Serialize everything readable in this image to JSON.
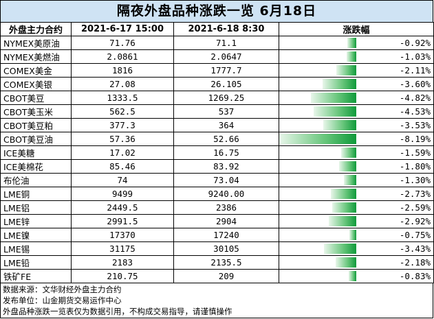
{
  "title": "隔夜外盘品种涨跌一览  6月18日",
  "headers": {
    "name": "外盘主力合约",
    "prev": "2021-6-17 15:00",
    "curr": "2021-6-18 8:30",
    "change": "涨跌幅"
  },
  "colors": {
    "bar_dark": "#0f9a3a",
    "bar_light": "#e8f6ea",
    "title_bg": "#cfe3f4"
  },
  "rows": [
    {
      "name": "NYMEX美原油",
      "prev": "71.76",
      "curr": "71.1",
      "pct_text": "-0.92%",
      "pct": -0.92
    },
    {
      "name": "NYMEX美燃油",
      "prev": "2.0861",
      "curr": "2.0647",
      "pct_text": "-1.03%",
      "pct": -1.03
    },
    {
      "name": "COMEX美金",
      "prev": "1816",
      "curr": "1777.7",
      "pct_text": "-2.11%",
      "pct": -2.11
    },
    {
      "name": "COMEX美银",
      "prev": "27.08",
      "curr": "26.105",
      "pct_text": "-3.60%",
      "pct": -3.6
    },
    {
      "name": "CBOT美豆",
      "prev": "1333.5",
      "curr": "1269.25",
      "pct_text": "-4.82%",
      "pct": -4.82
    },
    {
      "name": "CBOT美玉米",
      "prev": "562.5",
      "curr": "537",
      "pct_text": "-4.53%",
      "pct": -4.53
    },
    {
      "name": "CBOT美豆粕",
      "prev": "377.3",
      "curr": "364",
      "pct_text": "-3.53%",
      "pct": -3.53
    },
    {
      "name": "CBOT美豆油",
      "prev": "57.36",
      "curr": "52.66",
      "pct_text": "-8.19%",
      "pct": -8.19
    },
    {
      "name": "ICE美糖",
      "prev": "17.02",
      "curr": "16.75",
      "pct_text": "-1.59%",
      "pct": -1.59
    },
    {
      "name": "ICE美棉花",
      "prev": "85.46",
      "curr": "83.92",
      "pct_text": "-1.80%",
      "pct": -1.8
    },
    {
      "name": "布伦油",
      "prev": "74",
      "curr": "73.04",
      "pct_text": "-1.30%",
      "pct": -1.3
    },
    {
      "name": "LME铜",
      "prev": "9499",
      "curr": "9240.00",
      "pct_text": "-2.73%",
      "pct": -2.73
    },
    {
      "name": "LME铝",
      "prev": "2449.5",
      "curr": "2386",
      "pct_text": "-2.59%",
      "pct": -2.59
    },
    {
      "name": "LME锌",
      "prev": "2991.5",
      "curr": "2904",
      "pct_text": "-2.92%",
      "pct": -2.92
    },
    {
      "name": "LME镍",
      "prev": "17370",
      "curr": "17240",
      "pct_text": "-0.75%",
      "pct": -0.75
    },
    {
      "name": "LME锡",
      "prev": "31175",
      "curr": "30105",
      "pct_text": "-3.43%",
      "pct": -3.43
    },
    {
      "name": "LME铅",
      "prev": "2183",
      "curr": "2135.5",
      "pct_text": "-2.18%",
      "pct": -2.18
    },
    {
      "name": "铁矿FE",
      "prev": "210.75",
      "curr": "209",
      "pct_text": "-0.83%",
      "pct": -0.83
    }
  ],
  "notes": {
    "source": "数据来源：文华财经外盘主力合约",
    "publisher": "发布单位：山金期货交易运作中心",
    "disclaimer": "外盘品种涨跌一览表仅为数据引用，不构成交易指导，请谨慎操作"
  }
}
